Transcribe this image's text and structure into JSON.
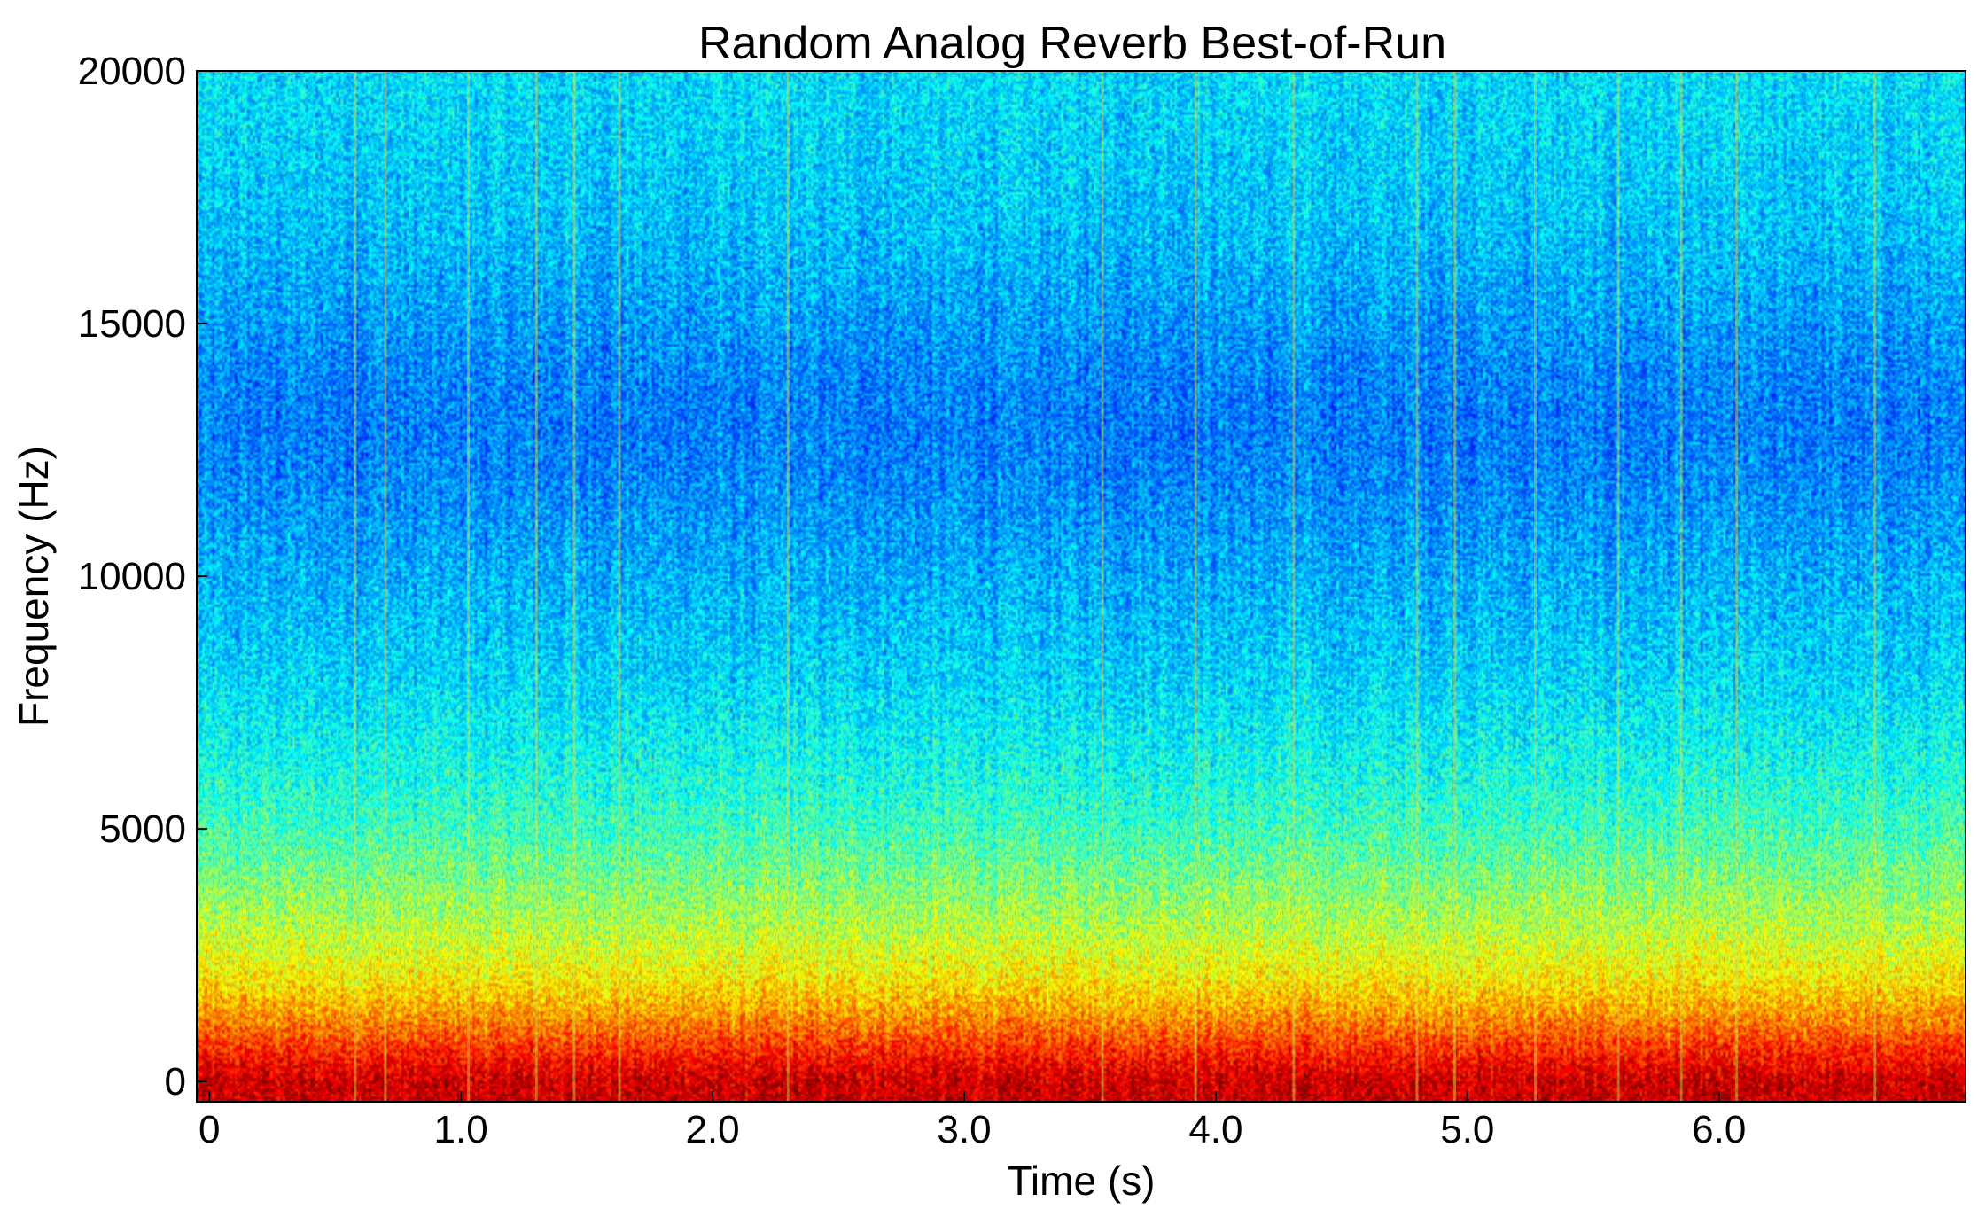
{
  "chart_data": {
    "type": "heatmap",
    "subtype": "spectrogram",
    "title": "Random Analog Reverb Best-of-Run",
    "xlabel": "Time (s)",
    "ylabel": "Frequency (Hz)",
    "xlim": [
      -0.05,
      6.98
    ],
    "ylim": [
      -400,
      20000
    ],
    "xticks": [
      0,
      1.0,
      2.0,
      3.0,
      4.0,
      5.0,
      6.0
    ],
    "xtick_labels": [
      "0",
      "1.0",
      "2.0",
      "3.0",
      "4.0",
      "5.0",
      "6.0"
    ],
    "yticks": [
      0,
      5000,
      10000,
      15000,
      20000
    ],
    "ytick_labels": [
      "0",
      "5000",
      "10000",
      "15000",
      "20000"
    ],
    "colormap": "jet",
    "grid": false,
    "intensity_profile": {
      "frequency_hz": [
        0,
        300,
        700,
        1000,
        1500,
        2000,
        2500,
        3000,
        4000,
        5000,
        6000,
        7000,
        8000,
        9000,
        10000,
        11000,
        12000,
        13000,
        14000,
        15000,
        16000,
        17000,
        18000,
        19000,
        20000
      ],
      "relative_level": [
        0.92,
        0.88,
        0.82,
        0.77,
        0.7,
        0.64,
        0.6,
        0.56,
        0.5,
        0.44,
        0.4,
        0.37,
        0.34,
        0.32,
        0.3,
        0.28,
        0.26,
        0.25,
        0.26,
        0.28,
        0.3,
        0.32,
        0.33,
        0.34,
        0.35
      ]
    },
    "transient_times_s": [
      0.58,
      0.7,
      1.03,
      1.3,
      1.45,
      1.63,
      2.3,
      3.55,
      3.92,
      4.31,
      4.8,
      4.95,
      5.27,
      5.6,
      5.85,
      6.07,
      6.62
    ]
  }
}
